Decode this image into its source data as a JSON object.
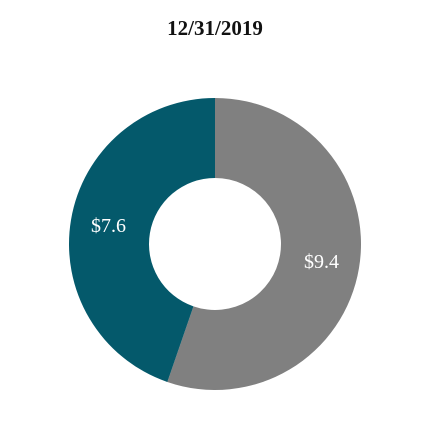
{
  "chart_data": {
    "type": "pie",
    "title": "12/31/2019",
    "slices": [
      {
        "label": "$9.4",
        "value": 9.4,
        "color": "#808080"
      },
      {
        "label": "$7.6",
        "value": 7.6,
        "color": "#04596b"
      }
    ],
    "donut": true,
    "start": "top",
    "direction": "clockwise",
    "legend": "none"
  }
}
